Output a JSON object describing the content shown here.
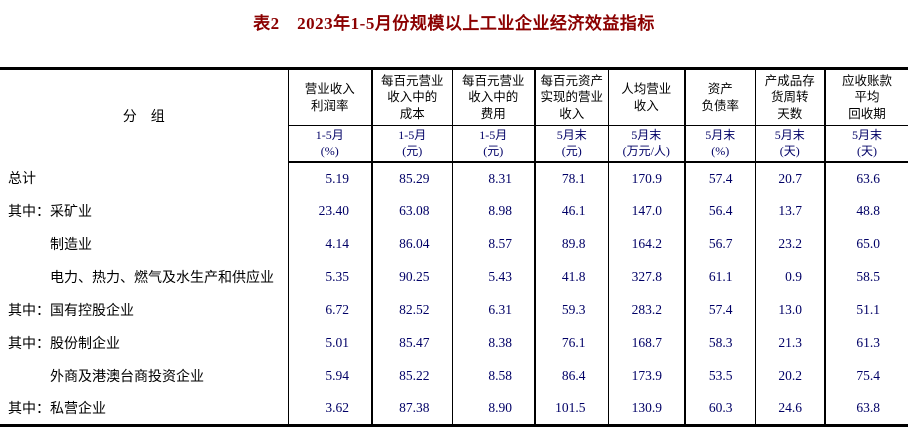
{
  "title": "表2　2023年1-5月份规模以上工业企业经济效益指标",
  "colors": {
    "title_text": "#8B0000",
    "data_text": "#000066",
    "label_text": "#000000",
    "rule": "#000000"
  },
  "table": {
    "group_header": "分　组",
    "columns": [
      {
        "name": "营业收入\n利润率",
        "period": "1-5月",
        "unit": "(%)"
      },
      {
        "name": "每百元营业\n收入中的\n成本",
        "period": "1-5月",
        "unit": "(元)"
      },
      {
        "name": "每百元营业\n收入中的\n费用",
        "period": "1-5月",
        "unit": "(元)"
      },
      {
        "name": "每百元资产\n实现的营业\n收入",
        "period": "5月末",
        "unit": "(元)"
      },
      {
        "name": "人均营业\n收入",
        "period": "5月末",
        "unit": "(万元/人)"
      },
      {
        "name": "资产\n负债率",
        "period": "5月末",
        "unit": "(%)"
      },
      {
        "name": "产成品存\n货周转\n天数",
        "period": "5月末",
        "unit": "(天)"
      },
      {
        "name": "应收账款\n平均\n回收期",
        "period": "5月末",
        "unit": "(天)"
      }
    ],
    "rows": [
      {
        "prefix": "",
        "label": "总计",
        "indent": false,
        "values": [
          "5.19",
          "85.29",
          "8.31",
          "78.1",
          "170.9",
          "57.4",
          "20.7",
          "63.6"
        ]
      },
      {
        "prefix": "其中：",
        "label": "采矿业",
        "indent": false,
        "values": [
          "23.40",
          "63.08",
          "8.98",
          "46.1",
          "147.0",
          "56.4",
          "13.7",
          "48.8"
        ]
      },
      {
        "prefix": "",
        "label": "制造业",
        "indent": true,
        "values": [
          "4.14",
          "86.04",
          "8.57",
          "89.8",
          "164.2",
          "56.7",
          "23.2",
          "65.0"
        ]
      },
      {
        "prefix": "",
        "label": "电力、热力、燃气及水生产和供应业",
        "indent": true,
        "values": [
          "5.35",
          "90.25",
          "5.43",
          "41.8",
          "327.8",
          "61.1",
          "0.9",
          "58.5"
        ]
      },
      {
        "prefix": "其中：",
        "label": "国有控股企业",
        "indent": false,
        "values": [
          "6.72",
          "82.52",
          "6.31",
          "59.3",
          "283.2",
          "57.4",
          "13.0",
          "51.1"
        ]
      },
      {
        "prefix": "其中：",
        "label": "股份制企业",
        "indent": false,
        "values": [
          "5.01",
          "85.47",
          "8.38",
          "76.1",
          "168.7",
          "58.3",
          "21.3",
          "61.3"
        ]
      },
      {
        "prefix": "",
        "label": "外商及港澳台商投资企业",
        "indent": true,
        "values": [
          "5.94",
          "85.22",
          "8.58",
          "86.4",
          "173.9",
          "53.5",
          "20.2",
          "75.4"
        ]
      },
      {
        "prefix": "其中：",
        "label": "私营企业",
        "indent": false,
        "values": [
          "3.62",
          "87.38",
          "8.90",
          "101.5",
          "130.9",
          "60.3",
          "24.6",
          "63.8"
        ]
      }
    ]
  }
}
